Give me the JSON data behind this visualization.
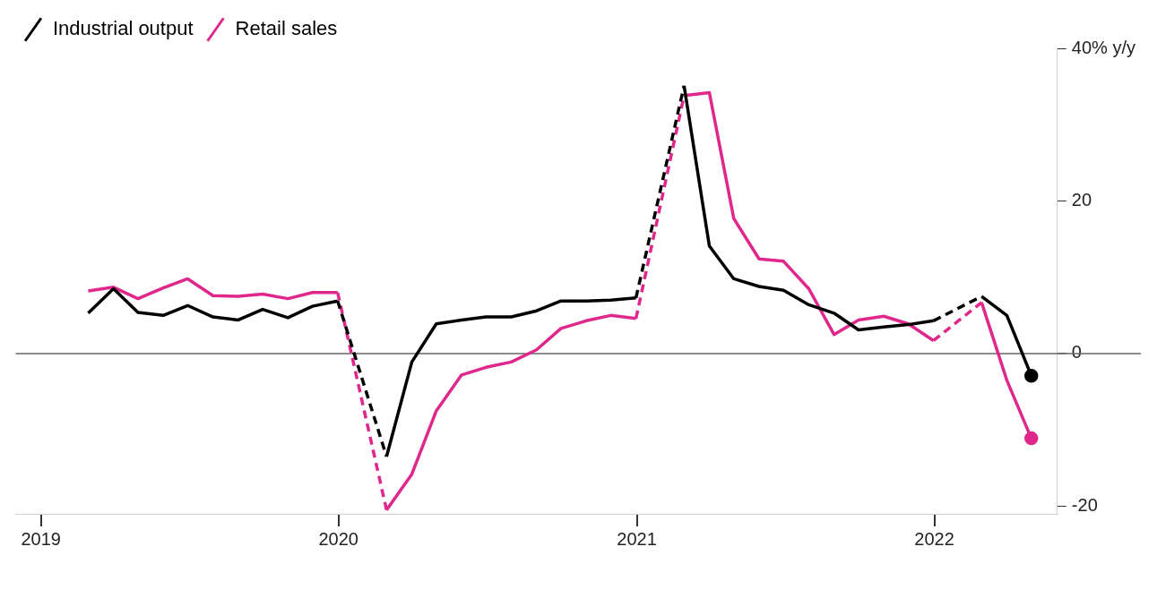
{
  "chart_data": {
    "type": "line",
    "x": [
      "2019-02-28",
      "2019-03-31",
      "2019-04-30",
      "2019-05-31",
      "2019-06-30",
      "2019-07-31",
      "2019-08-31",
      "2019-09-30",
      "2019-10-31",
      "2019-11-30",
      "2019-12-31",
      "2020-01-31",
      "2020-02-29",
      "2020-03-31",
      "2020-04-30",
      "2020-05-31",
      "2020-06-30",
      "2020-07-31",
      "2020-08-31",
      "2020-09-30",
      "2020-10-31",
      "2020-11-30",
      "2020-12-31",
      "2021-01-31",
      "2021-02-28",
      "2021-03-31",
      "2021-04-30",
      "2021-05-31",
      "2021-06-30",
      "2021-07-31",
      "2021-08-31",
      "2021-09-30",
      "2021-10-31",
      "2021-11-30",
      "2021-12-31",
      "2022-01-31",
      "2022-02-28",
      "2022-03-31",
      "2022-04-30"
    ],
    "series": [
      {
        "name": "Industrial output",
        "color": "#000000",
        "values": [
          5.3,
          8.5,
          5.4,
          5.0,
          6.3,
          4.8,
          4.4,
          5.8,
          4.7,
          6.2,
          6.9,
          null,
          -13.5,
          -1.1,
          3.9,
          4.4,
          4.8,
          4.8,
          5.6,
          6.9,
          6.9,
          7.0,
          7.3,
          null,
          35.1,
          14.1,
          9.8,
          8.8,
          8.3,
          6.4,
          5.3,
          3.1,
          3.5,
          3.8,
          4.3,
          null,
          7.5,
          5.0,
          -2.9
        ]
      },
      {
        "name": "Retail sales",
        "color": "#e0288c",
        "values": [
          8.2,
          8.7,
          7.2,
          8.6,
          9.8,
          7.6,
          7.5,
          7.8,
          7.2,
          8.0,
          8.0,
          null,
          -20.5,
          -15.8,
          -7.5,
          -2.8,
          -1.8,
          -1.1,
          0.5,
          3.3,
          4.3,
          5.0,
          4.6,
          null,
          33.8,
          34.2,
          17.7,
          12.4,
          12.1,
          8.5,
          2.5,
          4.4,
          4.9,
          3.9,
          1.7,
          null,
          6.7,
          -3.5,
          -11.1
        ]
      }
    ],
    "xlim": [
      "2018-12-01",
      "2022-06-01"
    ],
    "xticks": [
      {
        "value": "2019",
        "label": "2019"
      },
      {
        "value": "2020",
        "label": "2020"
      },
      {
        "value": "2021",
        "label": "2021"
      },
      {
        "value": "2022",
        "label": "2022"
      }
    ],
    "ylim": [
      -21,
      40
    ],
    "yticks": [
      -20,
      0,
      20,
      {
        "value": 40,
        "label": "40% y/y"
      }
    ],
    "ref_lines": [
      {
        "axis": "y",
        "value": 0,
        "color": "#666666"
      }
    ],
    "legend": "top left",
    "grid": false
  }
}
